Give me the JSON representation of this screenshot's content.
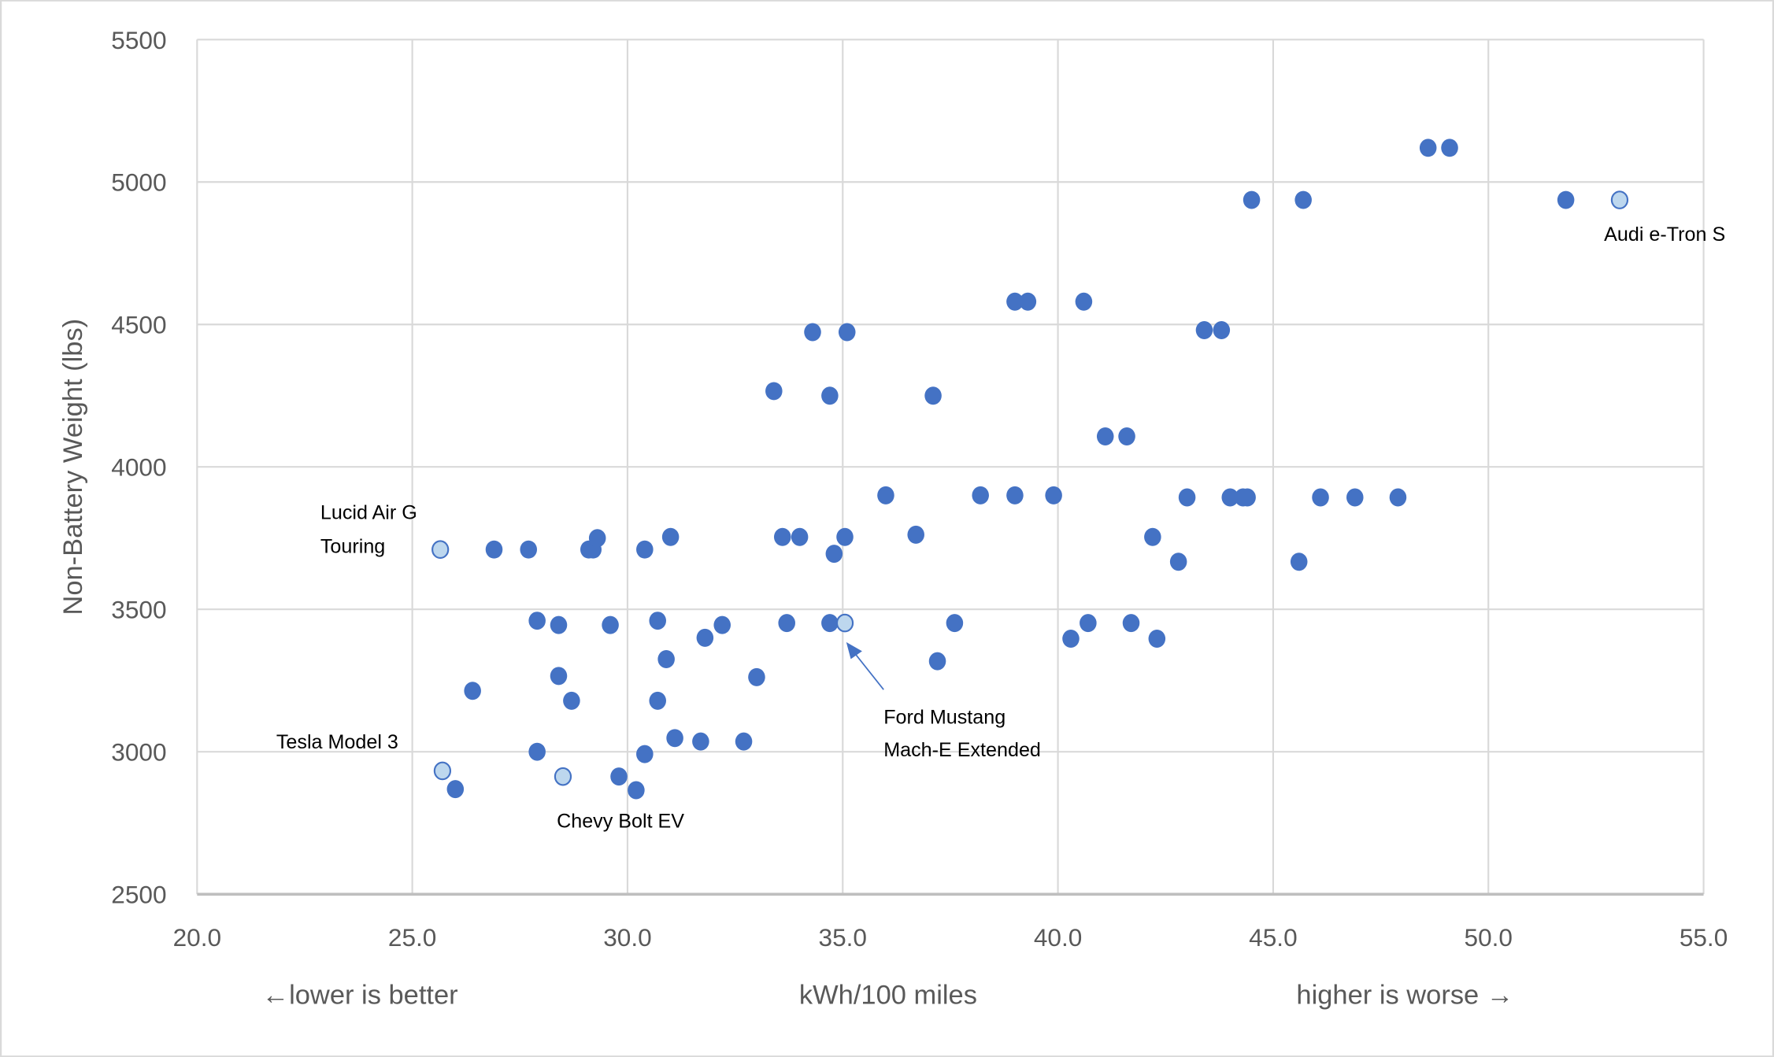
{
  "chart_data": {
    "type": "scatter",
    "title": "",
    "xlabel": "kWh/100 miles",
    "ylabel": "Non-Battery Weight (lbs)",
    "xlabel_left_note": "←lower is better",
    "xlabel_right_note": "higher is worse →",
    "xlim": [
      20,
      55
    ],
    "ylim": [
      2500,
      5500
    ],
    "xticks": [
      "20.0",
      "25.0",
      "30.0",
      "35.0",
      "40.0",
      "45.0",
      "50.0",
      "55.0"
    ],
    "yticks": [
      "2500",
      "3000",
      "3500",
      "4000",
      "4500",
      "5000",
      "5500"
    ],
    "grid": true,
    "colors": {
      "point": "#4472C4",
      "highlight_fill": "#BDD7EE",
      "highlight_stroke": "#4472C4",
      "grid": "#D9D9D9"
    },
    "points": [
      {
        "x": 48.6,
        "y": 5120
      },
      {
        "x": 49.1,
        "y": 5120
      },
      {
        "x": 44.5,
        "y": 4937
      },
      {
        "x": 45.7,
        "y": 4937
      },
      {
        "x": 51.8,
        "y": 4937
      },
      {
        "x": 39.0,
        "y": 4580
      },
      {
        "x": 39.3,
        "y": 4580
      },
      {
        "x": 40.6,
        "y": 4580
      },
      {
        "x": 34.3,
        "y": 4473
      },
      {
        "x": 35.1,
        "y": 4473
      },
      {
        "x": 43.4,
        "y": 4480
      },
      {
        "x": 43.8,
        "y": 4480
      },
      {
        "x": 33.4,
        "y": 4266
      },
      {
        "x": 34.7,
        "y": 4250
      },
      {
        "x": 37.1,
        "y": 4250
      },
      {
        "x": 41.1,
        "y": 4107
      },
      {
        "x": 41.6,
        "y": 4107
      },
      {
        "x": 36.0,
        "y": 3900
      },
      {
        "x": 38.2,
        "y": 3900
      },
      {
        "x": 39.0,
        "y": 3900
      },
      {
        "x": 39.9,
        "y": 3900
      },
      {
        "x": 43.0,
        "y": 3893
      },
      {
        "x": 44.0,
        "y": 3893
      },
      {
        "x": 44.3,
        "y": 3893
      },
      {
        "x": 44.4,
        "y": 3893
      },
      {
        "x": 46.1,
        "y": 3893
      },
      {
        "x": 46.9,
        "y": 3893
      },
      {
        "x": 47.9,
        "y": 3893
      },
      {
        "x": 26.9,
        "y": 3710
      },
      {
        "x": 27.7,
        "y": 3710
      },
      {
        "x": 29.1,
        "y": 3710
      },
      {
        "x": 29.2,
        "y": 3710
      },
      {
        "x": 30.4,
        "y": 3710
      },
      {
        "x": 29.3,
        "y": 3750
      },
      {
        "x": 31.0,
        "y": 3754
      },
      {
        "x": 33.6,
        "y": 3754
      },
      {
        "x": 34.0,
        "y": 3754
      },
      {
        "x": 35.05,
        "y": 3754
      },
      {
        "x": 36.7,
        "y": 3762
      },
      {
        "x": 34.8,
        "y": 3695
      },
      {
        "x": 42.2,
        "y": 3754
      },
      {
        "x": 42.8,
        "y": 3667
      },
      {
        "x": 45.6,
        "y": 3667
      },
      {
        "x": 27.9,
        "y": 3460
      },
      {
        "x": 28.4,
        "y": 3445
      },
      {
        "x": 29.6,
        "y": 3445
      },
      {
        "x": 30.7,
        "y": 3460
      },
      {
        "x": 32.2,
        "y": 3445
      },
      {
        "x": 31.8,
        "y": 3400
      },
      {
        "x": 33.7,
        "y": 3452
      },
      {
        "x": 34.7,
        "y": 3452
      },
      {
        "x": 37.6,
        "y": 3452
      },
      {
        "x": 40.7,
        "y": 3452
      },
      {
        "x": 41.7,
        "y": 3452
      },
      {
        "x": 40.3,
        "y": 3397
      },
      {
        "x": 42.3,
        "y": 3397
      },
      {
        "x": 30.9,
        "y": 3325
      },
      {
        "x": 37.2,
        "y": 3318
      },
      {
        "x": 26.4,
        "y": 3214
      },
      {
        "x": 28.4,
        "y": 3266
      },
      {
        "x": 28.7,
        "y": 3179
      },
      {
        "x": 30.7,
        "y": 3179
      },
      {
        "x": 33.0,
        "y": 3262
      },
      {
        "x": 31.1,
        "y": 3048
      },
      {
        "x": 31.7,
        "y": 3036
      },
      {
        "x": 32.7,
        "y": 3036
      },
      {
        "x": 27.9,
        "y": 3000
      },
      {
        "x": 30.4,
        "y": 2992
      },
      {
        "x": 26.0,
        "y": 2869
      },
      {
        "x": 29.8,
        "y": 2913
      },
      {
        "x": 30.2,
        "y": 2865
      }
    ],
    "highlighted": [
      {
        "x": 25.65,
        "y": 3710,
        "label": [
          "Lucid Air G",
          "Touring"
        ]
      },
      {
        "x": 25.7,
        "y": 2933,
        "label": [
          "Tesla Model 3"
        ]
      },
      {
        "x": 28.5,
        "y": 2913,
        "label": [
          "Chevy Bolt EV"
        ]
      },
      {
        "x": 35.05,
        "y": 3452,
        "label": [
          "Ford Mustang",
          "Mach-E Extended"
        ]
      },
      {
        "x": 53.05,
        "y": 4937,
        "label": [
          "Audi e-Tron S"
        ]
      }
    ]
  }
}
